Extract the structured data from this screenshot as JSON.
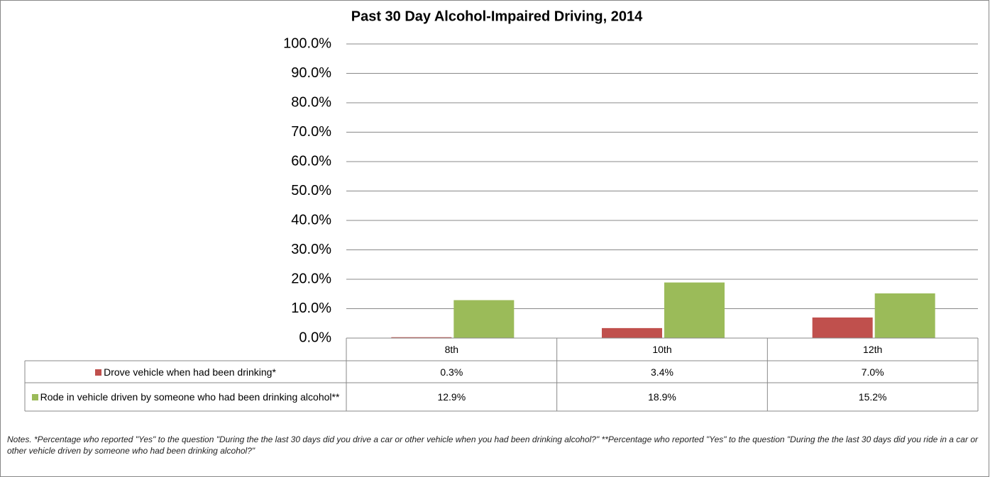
{
  "chart_data": {
    "type": "bar",
    "title": "Past 30 Day Alcohol-Impaired Driving, 2014",
    "categories": [
      "8th",
      "10th",
      "12th"
    ],
    "series": [
      {
        "name": "Drove vehicle when had been drinking*",
        "color": "#c0504d",
        "values": [
          0.3,
          3.4,
          7.0
        ],
        "value_labels": [
          "0.3%",
          "3.4%",
          "7.0%"
        ]
      },
      {
        "name": "Rode in vehicle driven by someone who had been drinking alcohol**",
        "color": "#9bbb59",
        "values": [
          12.9,
          18.9,
          15.2
        ],
        "value_labels": [
          "12.9%",
          "18.9%",
          "15.2%"
        ]
      }
    ],
    "ylim": [
      0,
      100
    ],
    "yticks": [
      {
        "value": 0,
        "label": "0.0%"
      },
      {
        "value": 10,
        "label": "10.0%"
      },
      {
        "value": 20,
        "label": "20.0%"
      },
      {
        "value": 30,
        "label": "30.0%"
      },
      {
        "value": 40,
        "label": "40.0%"
      },
      {
        "value": 50,
        "label": "50.0%"
      },
      {
        "value": 60,
        "label": "60.0%"
      },
      {
        "value": 70,
        "label": "70.0%"
      },
      {
        "value": 80,
        "label": "80.0%"
      },
      {
        "value": 90,
        "label": "90.0%"
      },
      {
        "value": 100,
        "label": "100.0%"
      }
    ],
    "grid": true,
    "notes": "Notes. *Percentage who reported \"Yes\" to the question \"During the the last 30 days did you drive a car or other vehicle when you had been drinking alcohol?\" **Percentage who reported \"Yes\" to the question \"During the the last 30 days did you ride in a car or other vehicle driven by someone who had been drinking alcohol?\""
  }
}
